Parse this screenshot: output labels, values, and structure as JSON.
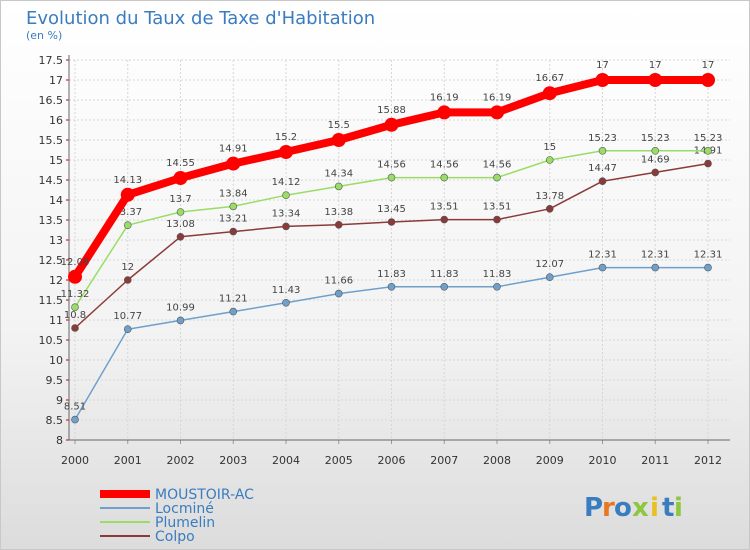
{
  "title": "Evolution du Taux de Taxe d'Habitation",
  "subtitle": "(en %)",
  "brand": {
    "text": "Proxiti",
    "letters": [
      "P",
      "r",
      "o",
      "x",
      "i",
      "t",
      "i"
    ],
    "colors": [
      "#3a7cc0",
      "#e87722",
      "#3a7cc0",
      "#8dc63f",
      "#e8c020",
      "#3a7cc0",
      "#8dc63f"
    ]
  },
  "chart_data": {
    "type": "line",
    "x": [
      "2000",
      "2001",
      "2002",
      "2003",
      "2004",
      "2005",
      "2006",
      "2007",
      "2008",
      "2009",
      "2010",
      "2011",
      "2012"
    ],
    "ylim": [
      8,
      17.5
    ],
    "yticks": [
      "8",
      "8.5",
      "9",
      "9.5",
      "10",
      "10.5",
      "11",
      "11.5",
      "12",
      "12.5",
      "13",
      "13.5",
      "14",
      "14.5",
      "15",
      "15.5",
      "16",
      "16.5",
      "17",
      "17.5"
    ],
    "grid": true,
    "legend_position": "bottom-left",
    "series": [
      {
        "name": "MOUSTOIR-AC",
        "color": "#ff0000",
        "values": [
          12.08,
          14.13,
          14.55,
          14.91,
          15.2,
          15.5,
          15.88,
          16.19,
          16.19,
          16.67,
          17,
          17,
          17
        ],
        "labels": [
          "12.08",
          "14.13",
          "14.55",
          "14.91",
          "15.2",
          "15.5",
          "15.88",
          "16.19",
          "16.19",
          "16.67",
          "17",
          "17",
          "17"
        ]
      },
      {
        "name": "Locminé",
        "color": "#6fa0cc",
        "values": [
          8.51,
          10.77,
          10.99,
          11.21,
          11.43,
          11.66,
          11.83,
          11.83,
          11.83,
          12.07,
          12.31,
          12.31,
          12.31
        ],
        "labels": [
          "8.51",
          "10.77",
          "10.99",
          "11.21",
          "11.43",
          "11.66",
          "11.83",
          "11.83",
          "11.83",
          "12.07",
          "12.31",
          "12.31",
          "12.31"
        ]
      },
      {
        "name": "Plumelin",
        "color": "#99dd66",
        "values": [
          11.32,
          13.37,
          13.7,
          13.84,
          14.12,
          14.34,
          14.56,
          14.56,
          14.56,
          15,
          15.23,
          15.23,
          15.23
        ],
        "labels": [
          "11.32",
          "13.37",
          "13.7",
          "13.84",
          "14.12",
          "14.34",
          "14.56",
          "14.56",
          "14.56",
          "15",
          "15.23",
          "15.23",
          "15.23"
        ]
      },
      {
        "name": "Colpo",
        "color": "#8b3a3a",
        "values": [
          10.8,
          12,
          13.08,
          13.21,
          13.34,
          13.38,
          13.45,
          13.51,
          13.51,
          13.78,
          14.47,
          14.69,
          14.91
        ],
        "labels": [
          "10.8",
          "12",
          "13.08",
          "13.21",
          "13.34",
          "13.38",
          "13.45",
          "13.51",
          "13.51",
          "13.78",
          "14.47",
          "14.69",
          "14.91"
        ]
      }
    ]
  }
}
